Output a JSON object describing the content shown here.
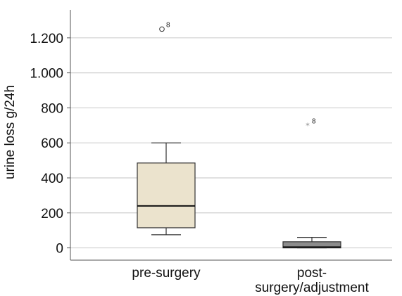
{
  "chart_data": {
    "type": "box",
    "title": "",
    "xlabel": "",
    "ylabel": "urine loss g/24h",
    "ylim": [
      -70,
      1360
    ],
    "yticks": [
      0,
      200,
      400,
      600,
      800,
      1000,
      1200
    ],
    "ytick_labels": [
      "0",
      "200",
      "400",
      "600",
      "800",
      "1.000",
      "1.200"
    ],
    "grid": true,
    "categories": [
      "pre-surgery",
      "post-\nsurgery/adjustment"
    ],
    "boxes": [
      {
        "category": "pre-surgery",
        "whisker_low": 75,
        "q1": 115,
        "median": 240,
        "q3": 485,
        "whisker_high": 600,
        "outliers": [
          {
            "value": 1250,
            "label": "8",
            "marker": "circle"
          }
        ],
        "fill": "#ebe3cd"
      },
      {
        "category": "post-\nsurgery/adjustment",
        "whisker_low": 0,
        "q1": 0,
        "median": 5,
        "q3": 35,
        "whisker_high": 60,
        "outliers": [
          {
            "value": 700,
            "label": "8",
            "marker": "star"
          }
        ],
        "fill": "#8c8c8c"
      }
    ]
  }
}
